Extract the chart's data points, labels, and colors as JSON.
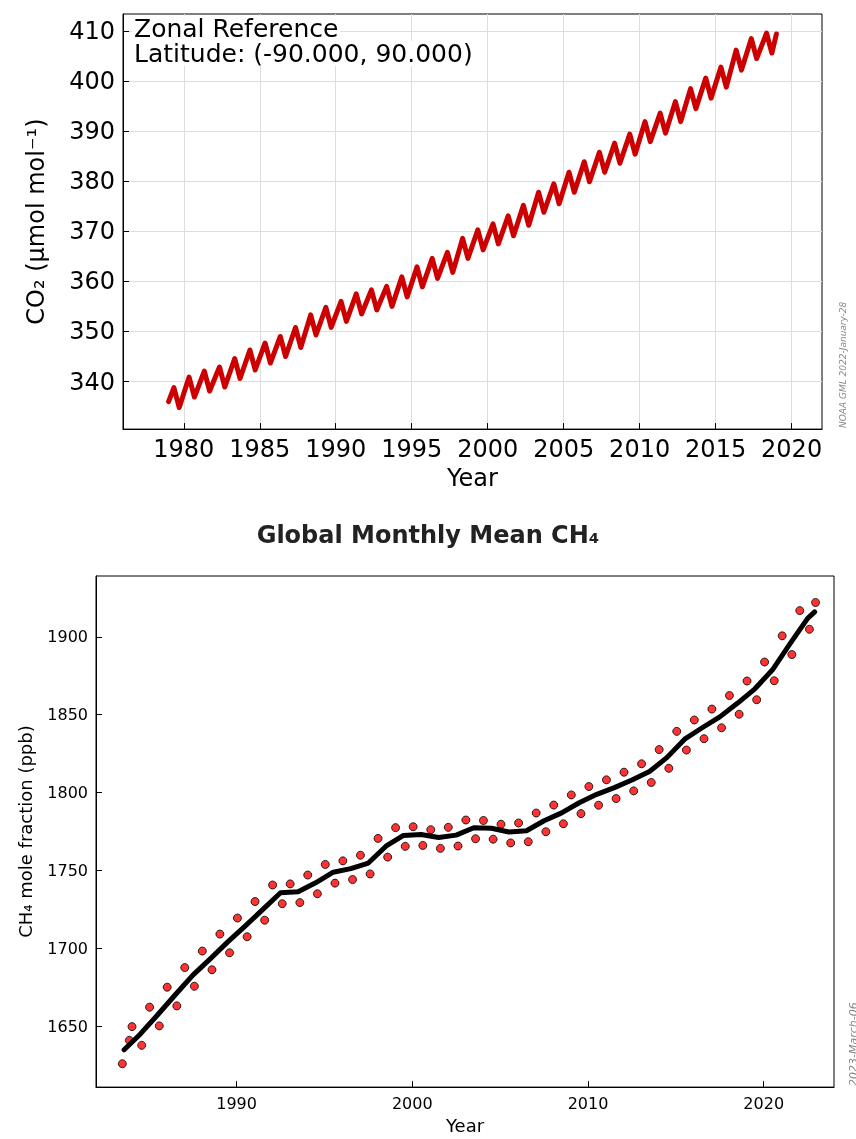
{
  "chart_data": [
    {
      "type": "line",
      "xlabel": "Year",
      "ylabel": "CO₂ (μmol mol⁻¹)",
      "annotations": [
        "Zonal Reference",
        "Latitude: (-90.000, 90.000)",
        "NOAA GML 2022-January-28"
      ],
      "xlim": [
        1976,
        2022
      ],
      "xticks": [
        1980,
        1985,
        1990,
        1995,
        2000,
        2005,
        2010,
        2015,
        2020
      ],
      "ylim": [
        330.5,
        413.4
      ],
      "yticks": [
        340,
        350,
        360,
        370,
        380,
        390,
        400,
        410
      ],
      "grid": true,
      "line_style": "solid",
      "series": [
        {
          "color": "#cc0000",
          "x": [
            1979.0,
            1979.35,
            1979.7,
            1980.35,
            1980.7,
            1981.35,
            1981.7,
            1982.35,
            1982.7,
            1983.35,
            1983.7,
            1984.35,
            1984.7,
            1985.35,
            1985.7,
            1986.35,
            1986.7,
            1987.35,
            1987.7,
            1988.35,
            1988.7,
            1989.35,
            1989.7,
            1990.35,
            1990.7,
            1991.35,
            1991.7,
            1992.35,
            1992.7,
            1993.35,
            1993.7,
            1994.35,
            1994.7,
            1995.35,
            1995.7,
            1996.35,
            1996.7,
            1997.35,
            1997.7,
            1998.35,
            1998.7,
            1999.35,
            1999.7,
            2000.35,
            2000.7,
            2001.35,
            2001.7,
            2002.35,
            2002.7,
            2003.35,
            2003.7,
            2004.35,
            2004.7,
            2005.35,
            2005.7,
            2006.35,
            2006.7,
            2007.35,
            2007.7,
            2008.35,
            2008.7,
            2009.35,
            2009.7,
            2010.35,
            2010.7,
            2011.35,
            2011.7,
            2012.35,
            2012.7,
            2013.35,
            2013.7,
            2014.35,
            2014.7,
            2015.35,
            2015.7,
            2016.35,
            2016.7,
            2017.35,
            2017.7,
            2018.35,
            2018.7,
            2019.0
          ],
          "values": [
            336.0,
            338.8,
            334.8,
            340.9,
            336.9,
            342.1,
            338.1,
            342.9,
            338.9,
            344.6,
            340.6,
            346.3,
            342.3,
            347.7,
            343.7,
            349.0,
            345.0,
            350.8,
            346.8,
            353.3,
            349.3,
            354.8,
            350.8,
            356.0,
            352.0,
            357.5,
            353.5,
            358.3,
            354.3,
            359.0,
            355.0,
            360.9,
            356.9,
            362.9,
            358.9,
            364.6,
            360.6,
            365.8,
            361.8,
            368.6,
            364.6,
            370.3,
            366.3,
            371.5,
            367.5,
            373.1,
            369.1,
            375.2,
            371.2,
            377.8,
            373.8,
            379.5,
            375.5,
            381.8,
            377.8,
            383.9,
            379.9,
            385.8,
            381.8,
            387.6,
            383.6,
            389.4,
            385.4,
            391.9,
            387.9,
            393.6,
            389.6,
            395.9,
            391.9,
            398.5,
            394.5,
            400.6,
            396.6,
            402.8,
            398.8,
            406.2,
            402.2,
            408.5,
            404.5,
            409.6,
            405.6,
            409.4
          ]
        }
      ]
    },
    {
      "type": "scatter",
      "title": "Global Monthly Mean CH₄",
      "xlabel": "Year",
      "ylabel": "CH₄ mole fraction (ppb)",
      "annotations": [
        "2023-March-06"
      ],
      "xlim": [
        1982,
        2024
      ],
      "xticks": [
        1990,
        2000,
        2010,
        2020
      ],
      "ylim": [
        1611,
        1939
      ],
      "yticks": [
        1650,
        1700,
        1750,
        1800,
        1850,
        1900
      ],
      "marker": "circle",
      "series": [
        {
          "color": "#ff0000",
          "x": [
            1983.5,
            1983.9,
            1984.05,
            1984.6,
            1985.05,
            1985.6,
            1986.05,
            1986.6,
            1987.05,
            1987.6,
            1988.05,
            1988.6,
            1989.05,
            1989.6,
            1990.05,
            1990.6,
            1991.05,
            1991.6,
            1992.05,
            1992.6,
            1993.05,
            1993.6,
            1994.05,
            1994.6,
            1995.05,
            1995.6,
            1996.05,
            1996.6,
            1997.05,
            1997.6,
            1998.05,
            1998.6,
            1999.05,
            1999.6,
            2000.05,
            2000.6,
            2001.05,
            2001.6,
            2002.05,
            2002.6,
            2003.05,
            2003.6,
            2004.05,
            2004.6,
            2005.05,
            2005.6,
            2006.05,
            2006.6,
            2007.05,
            2007.6,
            2008.05,
            2008.6,
            2009.05,
            2009.6,
            2010.05,
            2010.6,
            2011.05,
            2011.6,
            2012.05,
            2012.6,
            2013.05,
            2013.6,
            2014.05,
            2014.6,
            2015.05,
            2015.6,
            2016.05,
            2016.6,
            2017.05,
            2017.6,
            2018.05,
            2018.6,
            2019.05,
            2019.6,
            2020.05,
            2020.6,
            2021.05,
            2021.6,
            2022.05,
            2022.6,
            2022.95
          ],
          "values": [
            1626,
            1641,
            1649.8,
            1637.8,
            1662.3,
            1650.3,
            1675.1,
            1663.1,
            1687.7,
            1675.7,
            1698.3,
            1686.3,
            1709.2,
            1697.2,
            1719.5,
            1707.5,
            1730.1,
            1718.1,
            1740.7,
            1728.7,
            1741.4,
            1729.4,
            1747.1,
            1735.1,
            1753.9,
            1741.9,
            1756.2,
            1744.2,
            1759.8,
            1747.8,
            1770.6,
            1758.6,
            1777.5,
            1765.5,
            1778.1,
            1766.1,
            1776.2,
            1764.2,
            1777.7,
            1765.7,
            1782.4,
            1770.4,
            1782.1,
            1770.1,
            1779.7,
            1767.7,
            1780.5,
            1768.5,
            1786.9,
            1774.9,
            1792.0,
            1780.0,
            1798.5,
            1786.5,
            1803.9,
            1791.9,
            1808.2,
            1796.2,
            1813.1,
            1801.1,
            1818.5,
            1806.5,
            1827.6,
            1815.6,
            1839.3,
            1827.3,
            1846.6,
            1834.6,
            1853.6,
            1841.6,
            1862.3,
            1850.3,
            1871.6,
            1859.6,
            1883.8,
            1871.8,
            1900.6,
            1888.6,
            1916.8,
            1904.8,
            1922
          ]
        },
        {
          "type": "line",
          "color": "#000000",
          "marker": "none",
          "x": [
            1983.6,
            1984.5,
            1985.5,
            1986.5,
            1987.5,
            1988.5,
            1989.5,
            1990.5,
            1991.5,
            1992.5,
            1993.5,
            1994.5,
            1995.5,
            1996.5,
            1997.5,
            1998.5,
            1999.5,
            2000.5,
            2001.5,
            2002.5,
            2003.5,
            2004.5,
            2005.5,
            2006.5,
            2007.5,
            2008.5,
            2009.5,
            2010.5,
            2011.5,
            2012.5,
            2013.5,
            2014.5,
            2015.5,
            2016.5,
            2017.5,
            2018.5,
            2019.5,
            2020.5,
            2021.5,
            2022.5,
            2022.9
          ],
          "values": [
            1635,
            1644.8,
            1657.3,
            1670.1,
            1682.7,
            1693.3,
            1704.2,
            1714.5,
            1725.1,
            1735.7,
            1736.4,
            1742.1,
            1748.9,
            1751.2,
            1754.8,
            1765.6,
            1772.5,
            1773.1,
            1771.2,
            1772.7,
            1777.4,
            1777.1,
            1774.7,
            1775.5,
            1781.9,
            1787.0,
            1793.5,
            1798.9,
            1803.2,
            1808.1,
            1813.5,
            1822.6,
            1834.3,
            1841.6,
            1848.6,
            1857.3,
            1866.6,
            1878.8,
            1895.6,
            1911.8,
            1916
          ]
        }
      ]
    }
  ]
}
